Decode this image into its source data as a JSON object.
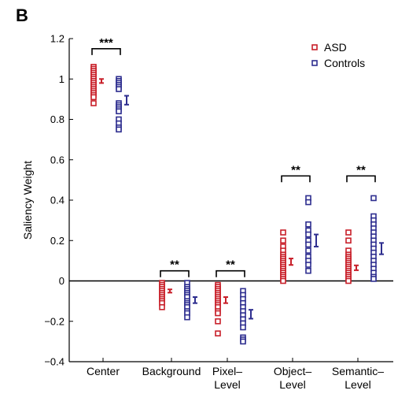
{
  "panel_label": "B",
  "chart_data": {
    "type": "scatter",
    "ylabel": "Saliency Weight",
    "ylim": [
      -0.4,
      1.2
    ],
    "yticks": [
      -0.4,
      -0.2,
      0,
      0.2,
      0.4,
      0.6,
      0.8,
      1,
      1.2
    ],
    "yticklabels": [
      "−0.4",
      "−0.2",
      "0",
      "0.2",
      "0.4",
      "0.6",
      "0.8",
      "1",
      "1.2"
    ],
    "categories": [
      {
        "lines": [
          "Center"
        ]
      },
      {
        "lines": [
          "Background"
        ]
      },
      {
        "lines": [
          "Pixel–",
          "Level"
        ]
      },
      {
        "lines": [
          "Object–",
          "Level"
        ]
      },
      {
        "lines": [
          "Semantic–",
          "Level"
        ]
      }
    ],
    "legend": {
      "position": "top-right"
    },
    "colors": {
      "ASD": "#c8202a",
      "Controls": "#2e2e8f"
    },
    "series": [
      {
        "name": "ASD",
        "color": "#c8202a",
        "points": [
          [
            1.06,
            1.05,
            1.04,
            1.03,
            1.02,
            1.01,
            1.0,
            0.99,
            0.98,
            0.97,
            0.96,
            0.95,
            0.94,
            0.93,
            0.92,
            0.91,
            0.88
          ],
          [
            -0.01,
            -0.02,
            -0.03,
            -0.04,
            -0.05,
            -0.06,
            -0.07,
            -0.08,
            -0.09,
            -0.1,
            -0.11,
            -0.13
          ],
          [
            -0.02,
            -0.03,
            -0.04,
            -0.05,
            -0.06,
            -0.07,
            -0.08,
            -0.09,
            -0.1,
            -0.11,
            -0.12,
            -0.13,
            -0.15,
            -0.16,
            -0.2,
            -0.26
          ],
          [
            0.24,
            0.2,
            0.17,
            0.15,
            0.13,
            0.12,
            0.11,
            0.1,
            0.09,
            0.08,
            0.07,
            0.06,
            0.05,
            0.04,
            0.03,
            0.02,
            0.01,
            0.0
          ],
          [
            0.24,
            0.2,
            0.15,
            0.13,
            0.12,
            0.11,
            0.1,
            0.09,
            0.08,
            0.07,
            0.06,
            0.05,
            0.04,
            0.03,
            0.02,
            0.01,
            0.0
          ]
        ],
        "means": [
          0.99,
          -0.05,
          -0.095,
          0.095,
          0.065
        ],
        "errors": [
          0.01,
          0.008,
          0.015,
          0.016,
          0.012
        ]
      },
      {
        "name": "Controls",
        "color": "#2e2e8f",
        "points": [
          [
            1.0,
            0.99,
            0.98,
            0.97,
            0.96,
            0.95,
            0.88,
            0.87,
            0.86,
            0.85,
            0.84,
            0.8,
            0.78,
            0.76,
            0.75
          ],
          [
            -0.01,
            -0.03,
            -0.04,
            -0.05,
            -0.06,
            -0.07,
            -0.08,
            -0.1,
            -0.11,
            -0.12,
            -0.13,
            -0.15,
            -0.16,
            -0.18
          ],
          [
            -0.05,
            -0.07,
            -0.09,
            -0.11,
            -0.13,
            -0.15,
            -0.17,
            -0.19,
            -0.21,
            -0.23,
            -0.28,
            -0.29,
            -0.3
          ],
          [
            0.41,
            0.39,
            0.28,
            0.25,
            0.23,
            0.2,
            0.18,
            0.15,
            0.12,
            0.1,
            0.08,
            0.05
          ],
          [
            0.41,
            0.32,
            0.3,
            0.28,
            0.26,
            0.24,
            0.22,
            0.2,
            0.18,
            0.16,
            0.14,
            0.12,
            0.1,
            0.08,
            0.06,
            0.04,
            0.02,
            0.01
          ]
        ],
        "means": [
          0.895,
          -0.095,
          -0.165,
          0.2,
          0.16
        ],
        "errors": [
          0.022,
          0.015,
          0.022,
          0.03,
          0.028
        ]
      }
    ],
    "significance": [
      {
        "category": 0,
        "label": "***",
        "y": 1.15
      },
      {
        "category": 1,
        "label": "**",
        "y": 0.05
      },
      {
        "category": 2,
        "label": "**",
        "y": 0.05
      },
      {
        "category": 3,
        "label": "**",
        "y": 0.52
      },
      {
        "category": 4,
        "label": "**",
        "y": 0.52
      }
    ]
  }
}
